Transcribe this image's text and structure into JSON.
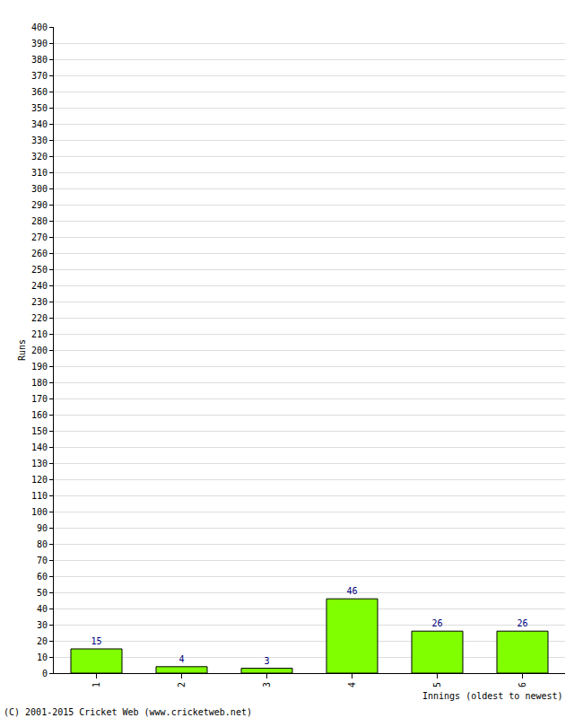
{
  "chart_data": {
    "type": "bar",
    "categories": [
      "1",
      "2",
      "3",
      "4",
      "5",
      "6"
    ],
    "values": [
      15,
      4,
      3,
      46,
      26,
      26
    ],
    "color": "#80ff00",
    "x_label": "Innings (oldest to newest)",
    "y_label": "Runs",
    "ylim": [
      0,
      400
    ],
    "yticks": [
      0,
      10,
      20,
      30,
      40,
      50,
      60,
      70,
      80,
      90,
      100,
      110,
      120,
      130,
      140,
      150,
      160,
      170,
      180,
      190,
      200,
      210,
      220,
      230,
      240,
      250,
      260,
      270,
      280,
      290,
      300,
      310,
      320,
      330,
      340,
      350,
      360,
      370,
      380,
      390,
      400
    ],
    "grid": true,
    "data_labels": true,
    "annotations": [
      "(C) 2001-2015 Cricket Web (www.cricketweb.net)"
    ]
  }
}
